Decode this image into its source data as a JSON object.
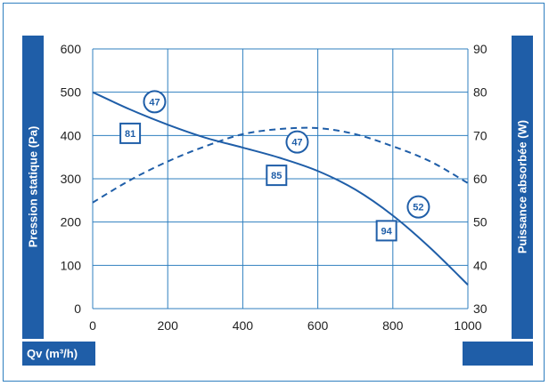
{
  "chart_data": {
    "type": "line",
    "xlabel": "Qv (m³/h)",
    "ylabel_left": "Pression statique (Pa)",
    "ylabel_right": "Puissance absorbée (W)",
    "x_ticks": [
      "0",
      "200",
      "400",
      "600",
      "800",
      "1000"
    ],
    "y_left_ticks": [
      "0",
      "100",
      "200",
      "300",
      "400",
      "500",
      "600"
    ],
    "y_right_ticks": [
      "30",
      "40",
      "50",
      "60",
      "70",
      "80",
      "90"
    ],
    "xlim": [
      0,
      1000
    ],
    "ylim_left": [
      0,
      600
    ],
    "ylim_right": [
      30,
      90
    ],
    "grid": true,
    "series": [
      {
        "style": "solid",
        "axis": "left",
        "x": [
          0,
          100,
          200,
          300,
          400,
          500,
          600,
          700,
          800,
          900,
          1000
        ],
        "y": [
          500,
          460,
          425,
          395,
          372,
          348,
          318,
          275,
          215,
          140,
          55
        ]
      },
      {
        "style": "dashed",
        "axis": "right",
        "x": [
          0,
          100,
          200,
          300,
          400,
          500,
          600,
          700,
          800,
          900,
          1000
        ],
        "y": [
          54.5,
          59.7,
          64,
          67.5,
          70.3,
          71.5,
          71.7,
          70.3,
          67.5,
          64,
          59
        ]
      }
    ],
    "annotations": [
      {
        "text": "47",
        "shape": "circle",
        "x": 165,
        "y_left": 478
      },
      {
        "text": "47",
        "shape": "circle",
        "x": 545,
        "y_left": 385
      },
      {
        "text": "52",
        "shape": "circle",
        "x": 868,
        "y_left": 235
      },
      {
        "text": "81",
        "shape": "square",
        "x": 100,
        "y_left": 405
      },
      {
        "text": "85",
        "shape": "square",
        "x": 490,
        "y_left": 308
      },
      {
        "text": "94",
        "shape": "square",
        "x": 783,
        "y_left": 180
      }
    ]
  },
  "colors": {
    "accent": "#1f5ea8",
    "grid": "#2f7fbf",
    "frame": "#2f7fbf",
    "text": "#222222"
  }
}
